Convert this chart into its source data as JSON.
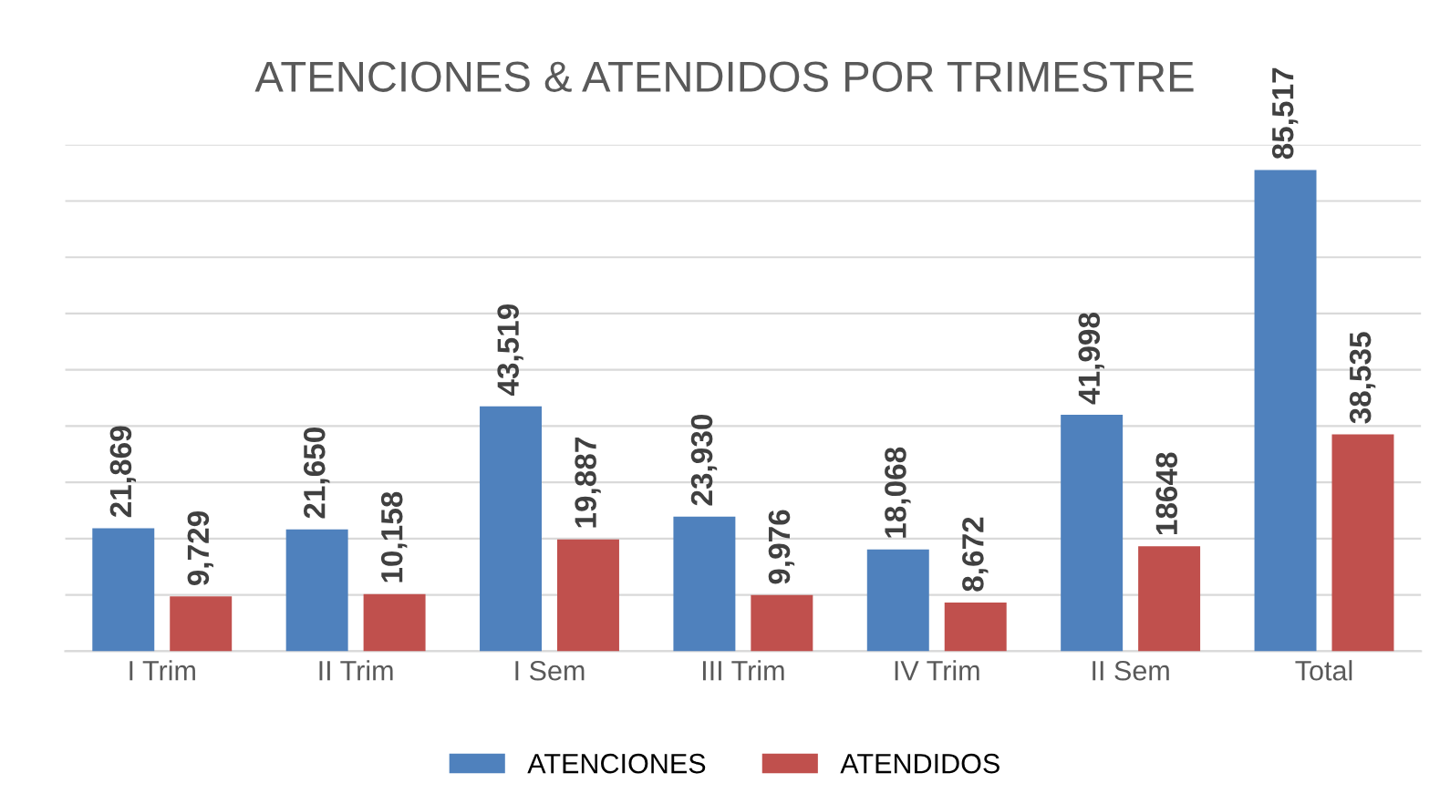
{
  "chart_data": {
    "type": "bar",
    "title": "ATENCIONES & ATENDIDOS POR TRIMESTRE",
    "categories": [
      "I Trim",
      "II Trim",
      "I Sem",
      "III Trim",
      "IV Trim",
      "II Sem",
      "Total"
    ],
    "series": [
      {
        "name": "ATENCIONES",
        "color": "#4f81bd",
        "values": [
          21869,
          21650,
          43519,
          23930,
          18068,
          41998,
          85517
        ],
        "value_labels": [
          "21,869",
          "21,650",
          "43,519",
          "23,930",
          "18,068",
          "41,998",
          "85,517"
        ]
      },
      {
        "name": "ATENDIDOS",
        "color": "#c0504d",
        "values": [
          9729,
          10158,
          19887,
          9976,
          8672,
          18648,
          38535
        ],
        "value_labels": [
          "9,729",
          "10,158",
          "19,887",
          "9,976",
          "8,672",
          "18648",
          "38,535"
        ]
      }
    ],
    "ylim": [
      0,
      90000
    ],
    "yticks": [
      {
        "value": 0,
        "label": null
      },
      {
        "value": 10000,
        "label": null
      },
      {
        "value": 20000,
        "label": null
      },
      {
        "value": 30000,
        "label": null
      },
      {
        "value": 40000,
        "label": null
      },
      {
        "value": 50000,
        "label": null
      },
      {
        "value": 60000,
        "label": null
      },
      {
        "value": 70000,
        "label": null
      },
      {
        "value": 80000,
        "label": null
      },
      {
        "value": 90000,
        "label": null
      }
    ],
    "grid": "y",
    "legend": "bottom",
    "tick_labels": "x"
  }
}
